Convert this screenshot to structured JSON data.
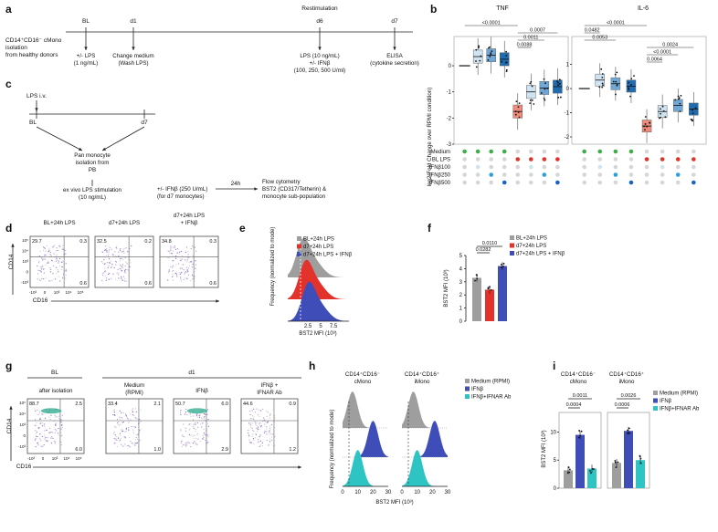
{
  "panel_a": {
    "letter": "a",
    "start_label": "CD14⁺CD16⁻ cMono isolation from healthy donors",
    "tick_bl": "BL",
    "tick_d1": "d1",
    "tick_d6": "d6",
    "tick_d7": "d7",
    "restim": "Restimulation",
    "bl_desc": [
      "+/- LPS",
      "(1 ng/mL)"
    ],
    "d1_desc": [
      "Change medium",
      "(Wash LPS)"
    ],
    "d6_desc": [
      "LPS (10 ng/mL)",
      "+/- IFNβ",
      "(100, 250, 500 U/ml)"
    ],
    "d7_desc": [
      "ELISA",
      "(cytokine secretion)"
    ]
  },
  "panel_b": {
    "letter": "b",
    "ylabel": "log2(Fold Change over RPMI condition)",
    "matrix_rows": [
      "Medium",
      "BL LPS",
      "IFNβ100",
      "IFNβ250",
      "IFNβ500"
    ],
    "colors": {
      "white": "#f4f4f4",
      "light": "#cfe3f1",
      "mid": "#6fa8d6",
      "dark": "#1f6cb0",
      "salmon": "#f08a7b",
      "green": "#3fae49",
      "red": "#e3312b",
      "teal": "#2d9fd8",
      "blue": "#1565c0",
      "grey": "#d6d6d6"
    },
    "chart_data": [
      {
        "type": "box",
        "title": "TNF",
        "ylabel": "log2(Fold Change over RPMI condition)",
        "ylim": [
          -3,
          0.7
        ],
        "yticks": [
          "0",
          "-1",
          "-2",
          "-3"
        ],
        "groups": [
          "Medium",
          "IFNβ100",
          "IFNβ250",
          "IFNβ500",
          "BL LPS",
          "BL LPS+IFNβ100",
          "BL LPS+IFNβ250",
          "BL LPS+IFNβ500"
        ],
        "medians": [
          0,
          0.35,
          0.4,
          0.25,
          -1.75,
          -1.0,
          -0.85,
          -0.8
        ],
        "p_values": [
          "<0.0001",
          "0.0007",
          "0.0011",
          "0.0088"
        ]
      },
      {
        "type": "box",
        "title": "IL-6",
        "ylim": [
          -2.3,
          1.7
        ],
        "yticks": [
          "1",
          "0",
          "-1",
          "-2"
        ],
        "groups": [
          "Medium",
          "IFNβ100",
          "IFNβ250",
          "IFNβ500",
          "BL LPS",
          "BL LPS+IFNβ100",
          "BL LPS+IFNβ250",
          "BL LPS+IFNβ500"
        ],
        "medians": [
          0,
          0.35,
          0.2,
          0.1,
          -1.55,
          -0.95,
          -0.7,
          -0.85
        ],
        "p_values": [
          "<0.0001",
          "0.0482",
          "0.0053",
          "0.0024",
          "<0.0001",
          "0.0064"
        ]
      }
    ]
  },
  "panel_c": {
    "letter": "c",
    "lps_iv": "LPS i.v.",
    "tick_bl": "BL",
    "tick_d7": "d7",
    "isolation": [
      "Pan monocyte",
      "isolation from",
      "PB"
    ],
    "exvivo": [
      "ex vivo LPS stimulation",
      "(10 ng/mL)"
    ],
    "ifn": [
      "+/- IFNβ (250 U/mL)",
      "(for d7 monocytes)"
    ],
    "duration": "24h",
    "readout": [
      "Flow cytometry",
      "BST2 (CD317/Tetherin) &",
      "monocyte sub-population"
    ]
  },
  "panel_d": {
    "letter": "d",
    "titles": [
      [
        "BL+24h LPS"
      ],
      [
        "d7+24h LPS"
      ],
      [
        "d7+24h LPS",
        "+ IFNβ"
      ]
    ],
    "quadrants": [
      [
        "29.7",
        "0.3",
        "0.6"
      ],
      [
        "32.5",
        "0.2",
        "0.6"
      ],
      [
        "34.8",
        "0.3",
        "0.6"
      ]
    ],
    "ylabel": "CD14",
    "xlabel": "CD16",
    "yticks": [
      "10⁵",
      "10⁴",
      "10³",
      "0",
      "-10³"
    ],
    "xticks": [
      "-10³",
      "0",
      "10³",
      "10⁴",
      "10⁵"
    ]
  },
  "panel_e": {
    "letter": "e",
    "chart_data": {
      "type": "area",
      "xlabel": "BST2 MFI (10³)",
      "ylabel": "Frequency (normalized to mode)",
      "xticks": [
        "2.5",
        "5",
        "7.5"
      ],
      "series": [
        {
          "name": "BL+24h LPS",
          "color": "#9e9e9e"
        },
        {
          "name": "d7+24h LPS",
          "color": "#e3312b"
        },
        {
          "name": "d7+24h LPS + IFNβ",
          "color": "#3f4db8"
        }
      ]
    }
  },
  "panel_f": {
    "letter": "f",
    "chart_data": {
      "type": "bar",
      "categories": [
        "BL+24h LPS",
        "d7+24h LPS",
        "d7+24h LPS + IFNβ"
      ],
      "values": [
        3.3,
        2.4,
        4.2
      ],
      "colors": [
        "#9e9e9e",
        "#e3312b",
        "#3f4db8"
      ],
      "ylabel": "BST2 MFI (10³)",
      "ylim": [
        0,
        5
      ],
      "yticks": [
        "0",
        "1",
        "2",
        "3",
        "4",
        "5"
      ],
      "p_values": [
        "0.0110",
        "0.0282"
      ]
    }
  },
  "panel_g": {
    "letter": "g",
    "group_bl": "BL",
    "group_d1": "d1",
    "titles": [
      [
        "after isolation"
      ],
      [
        "Medium",
        "(RPMI)"
      ],
      [
        "IFNβ"
      ],
      [
        "IFNβ +",
        "IFNAR Ab"
      ]
    ],
    "quadrants": [
      [
        "88.7",
        "2.5",
        "6.0"
      ],
      [
        "33.4",
        "2.1",
        "1.0"
      ],
      [
        "50.7",
        "6.0",
        "2.9"
      ],
      [
        "44.6",
        "0.9",
        "1.2"
      ]
    ],
    "ylabel": "CD14",
    "xlabel": "CD16",
    "yticks": [
      "10⁵",
      "10⁴",
      "10³",
      "0",
      "-10³"
    ],
    "xticks": [
      "-10³",
      "0",
      "10³",
      "10⁴",
      "10⁵"
    ]
  },
  "panel_h": {
    "letter": "h",
    "col1": [
      "CD14⁺CD16⁻",
      "cMono"
    ],
    "col2": [
      "CD14⁺CD16⁺",
      "iMono"
    ],
    "chart_data": {
      "type": "area",
      "xlabel": "BST2 MFI (10³)",
      "ylabel": "Frequency (normalized to mode)",
      "xticks": [
        "0",
        "10",
        "20",
        "30"
      ],
      "series": [
        {
          "name": "Medium (RPMI)",
          "color": "#9e9e9e"
        },
        {
          "name": "IFNβ",
          "color": "#3f4db8"
        },
        {
          "name": "IFNβ+IFNAR Ab",
          "color": "#2ec4c4"
        }
      ]
    }
  },
  "panel_i": {
    "letter": "i",
    "col1": [
      "CD14⁺CD16⁻",
      "cMono"
    ],
    "col2": [
      "CD14⁺CD16⁺",
      "iMono"
    ],
    "chart_data": {
      "type": "bar",
      "categories": [
        "Medium (RPMI)",
        "IFNβ",
        "IFNβ+IFNAR Ab"
      ],
      "series": [
        {
          "name": "cMono",
          "values": [
            3.2,
            9.5,
            3.5
          ]
        },
        {
          "name": "iMono",
          "values": [
            4.5,
            10.2,
            5.0
          ]
        }
      ],
      "colors": [
        "#9e9e9e",
        "#3f4db8",
        "#2ec4c4"
      ],
      "ylabel": "BST2 MFI (10³)",
      "ylim": [
        0,
        13
      ],
      "yticks": [
        "0",
        "5",
        "10"
      ],
      "p_values_cmono": [
        "0.0011",
        "0.0004"
      ],
      "p_values_imono": [
        "0.0026",
        "0.0006"
      ]
    }
  }
}
